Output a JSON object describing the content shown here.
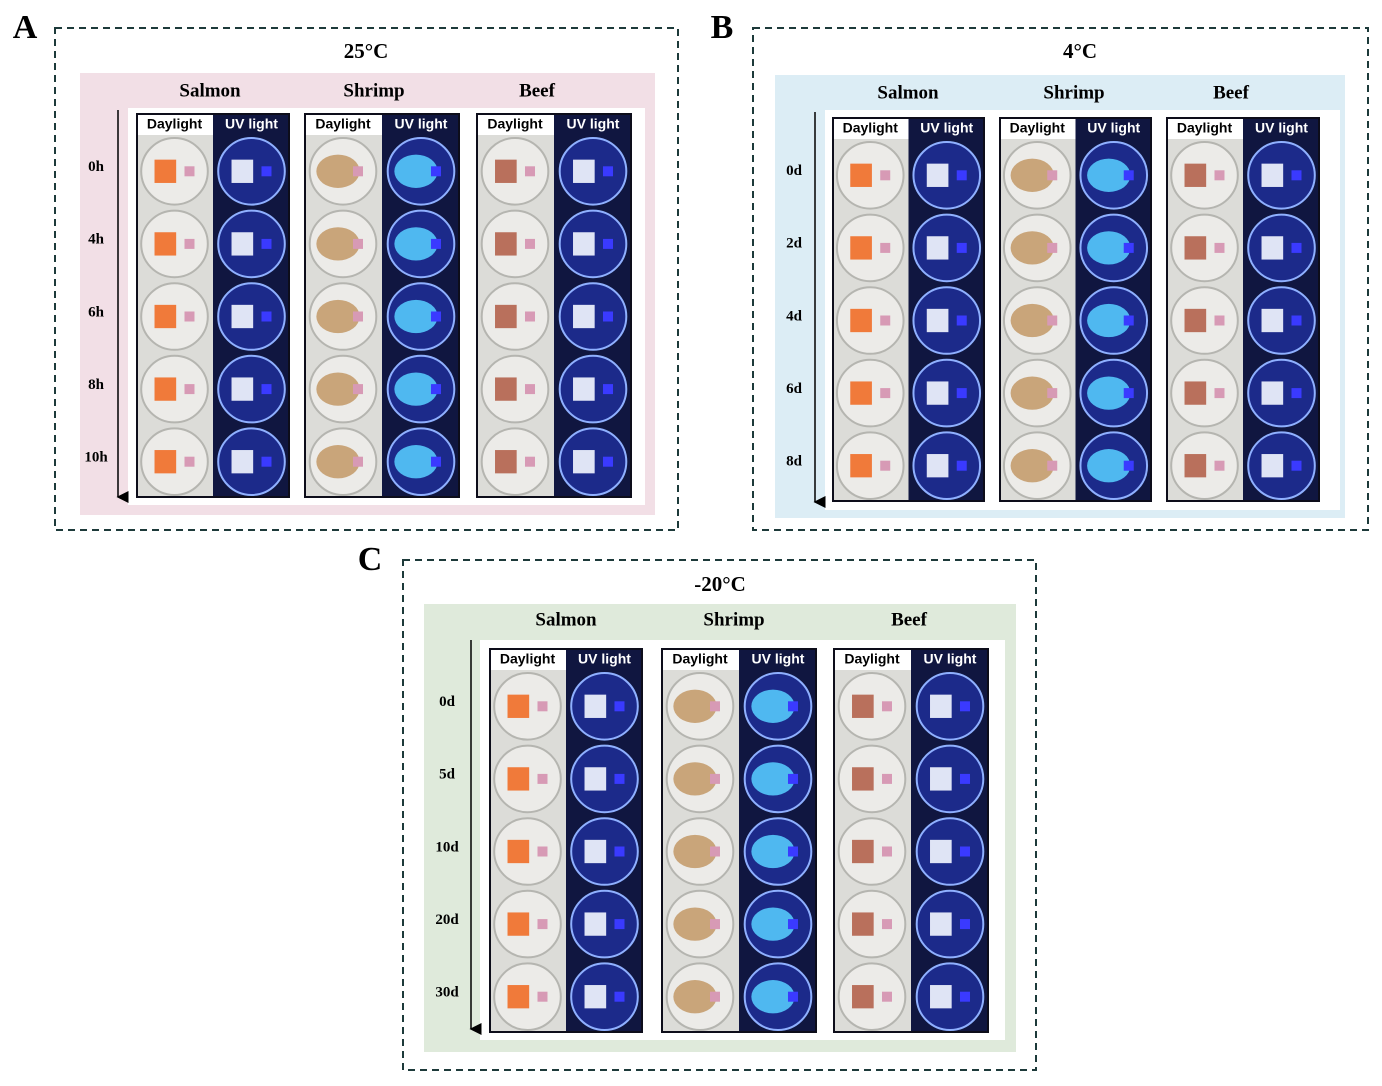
{
  "panels": [
    {
      "letter": "A",
      "title": "25°C",
      "foods": [
        "Salmon",
        "Shrimp",
        "Beef"
      ],
      "conditions": [
        "Daylight",
        "UV light"
      ],
      "times": [
        "0h",
        "4h",
        "6h",
        "8h",
        "10h"
      ]
    },
    {
      "letter": "B",
      "title": "4°C",
      "foods": [
        "Salmon",
        "Shrimp",
        "Beef"
      ],
      "conditions": [
        "Daylight",
        "UV light"
      ],
      "times": [
        "0d",
        "2d",
        "4d",
        "6d",
        "8d"
      ]
    },
    {
      "letter": "C",
      "title": "-20°C",
      "foods": [
        "Salmon",
        "Shrimp",
        "Beef"
      ],
      "conditions": [
        "Daylight",
        "UV light"
      ],
      "times": [
        "0d",
        "5d",
        "10d",
        "20d",
        "30d"
      ]
    }
  ]
}
